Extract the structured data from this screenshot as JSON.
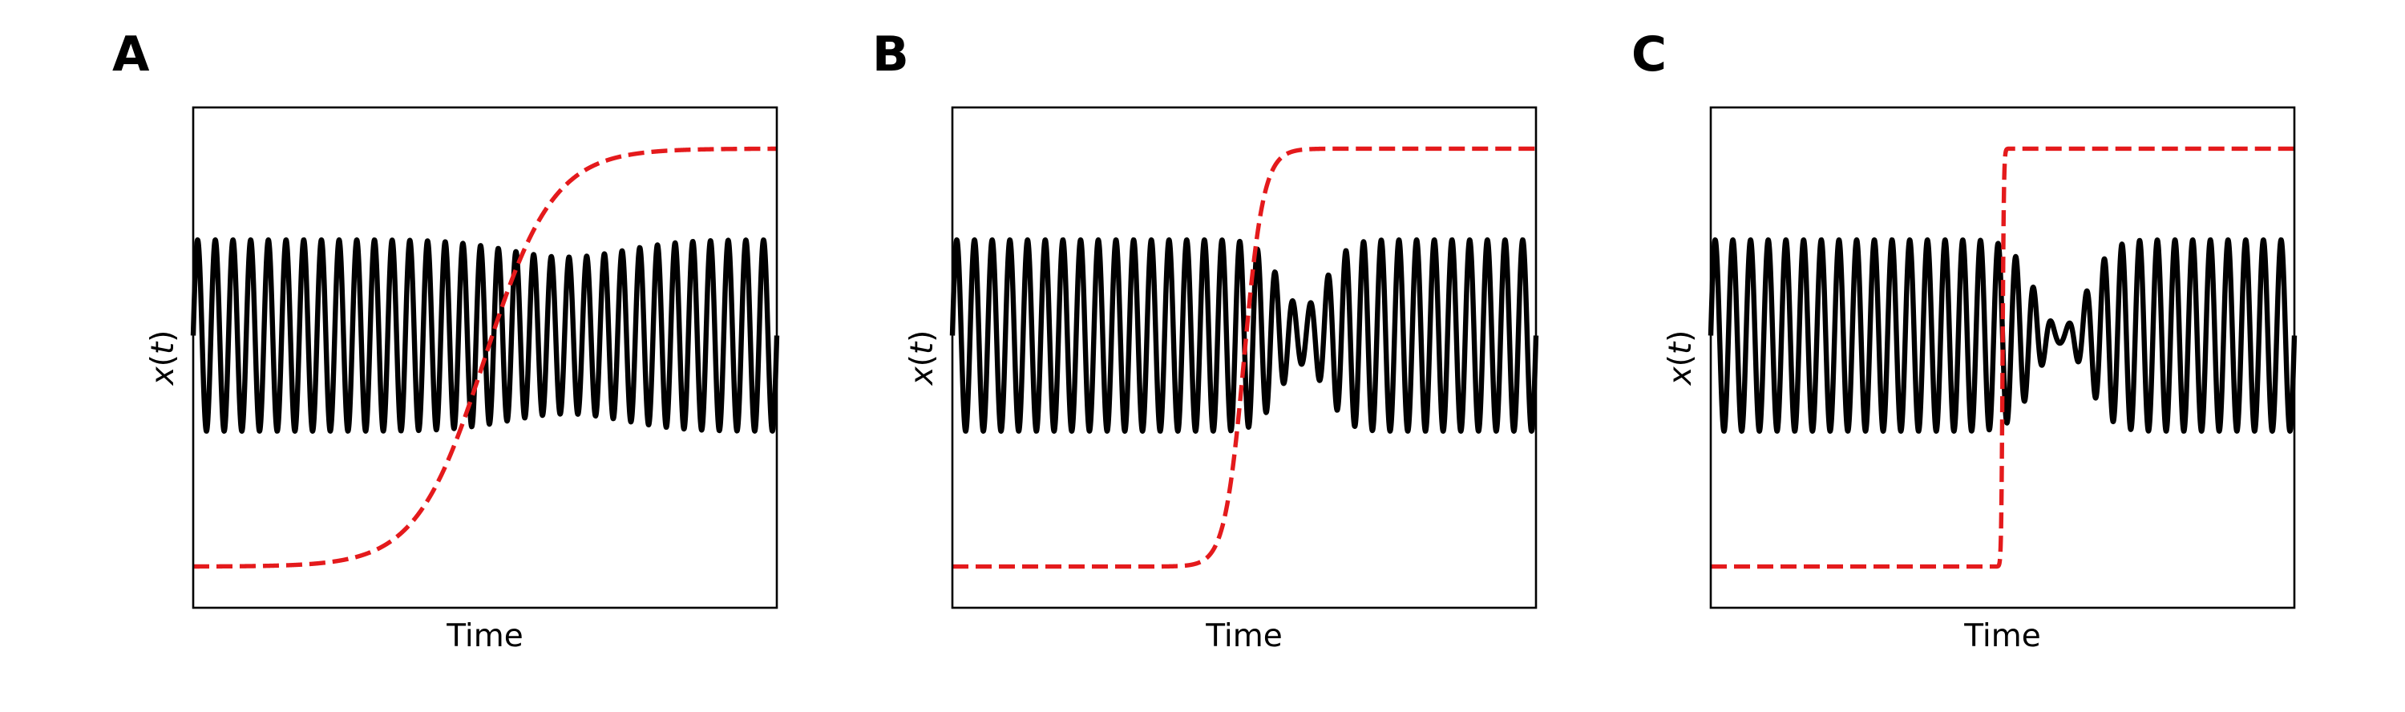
{
  "figure": {
    "colors": {
      "signal": "#000000",
      "control": "#e41a1c"
    }
  },
  "chart_data": [
    {
      "type": "line",
      "panel_label": "A",
      "xlabel": "Time",
      "ylabel": "x(t)",
      "ylabel_display": {
        "prefix": "x",
        "open": "(",
        "var": "t",
        "close": ")"
      },
      "x_ticks_visible": false,
      "y_ticks_visible": false,
      "grid": false,
      "xlim": [
        0,
        1
      ],
      "ylim": [
        -1.85,
        1.55
      ],
      "series": [
        {
          "role": "signal",
          "style": "solid",
          "color": "#000000",
          "oscillation_cycles": 33,
          "baseline": 0,
          "amplitude": 0.65,
          "amplitude_min_ratio": 0.82,
          "dip_center": 0.64,
          "dip_width": 0.14
        },
        {
          "role": "control",
          "style": "dashed",
          "color": "#e41a1c",
          "shape": "sigmoid",
          "low": -1.57,
          "high": 1.27,
          "midpoint": 0.5,
          "steepness": 17
        }
      ]
    },
    {
      "type": "line",
      "panel_label": "B",
      "xlabel": "Time",
      "ylabel": "x(t)",
      "ylabel_display": {
        "prefix": "x",
        "open": "(",
        "var": "t",
        "close": ")"
      },
      "x_ticks_visible": false,
      "y_ticks_visible": false,
      "grid": false,
      "xlim": [
        0,
        1
      ],
      "ylim": [
        -1.85,
        1.55
      ],
      "series": [
        {
          "role": "signal",
          "style": "solid",
          "color": "#000000",
          "oscillation_cycles": 33,
          "baseline": 0,
          "amplitude": 0.65,
          "amplitude_min_ratio": 0.3,
          "dip_center": 0.6,
          "dip_width": 0.055
        },
        {
          "role": "control",
          "style": "dashed",
          "color": "#e41a1c",
          "shape": "sigmoid",
          "low": -1.57,
          "high": 1.27,
          "midpoint": 0.5,
          "steepness": 60
        }
      ]
    },
    {
      "type": "line",
      "panel_label": "C",
      "xlabel": "Time",
      "ylabel": "x(t)",
      "ylabel_display": {
        "prefix": "x",
        "open": "(",
        "var": "t",
        "close": ")"
      },
      "x_ticks_visible": false,
      "y_ticks_visible": false,
      "grid": false,
      "xlim": [
        0,
        1
      ],
      "ylim": [
        -1.85,
        1.55
      ],
      "series": [
        {
          "role": "signal",
          "style": "solid",
          "color": "#000000",
          "oscillation_cycles": 33,
          "baseline": 0,
          "amplitude": 0.65,
          "amplitude_min_ratio": 0.08,
          "dip_center": 0.6,
          "dip_width": 0.06
        },
        {
          "role": "control",
          "style": "dashed",
          "color": "#e41a1c",
          "shape": "sigmoid",
          "low": -1.57,
          "high": 1.27,
          "midpoint": 0.5,
          "steepness": 900
        }
      ]
    }
  ]
}
